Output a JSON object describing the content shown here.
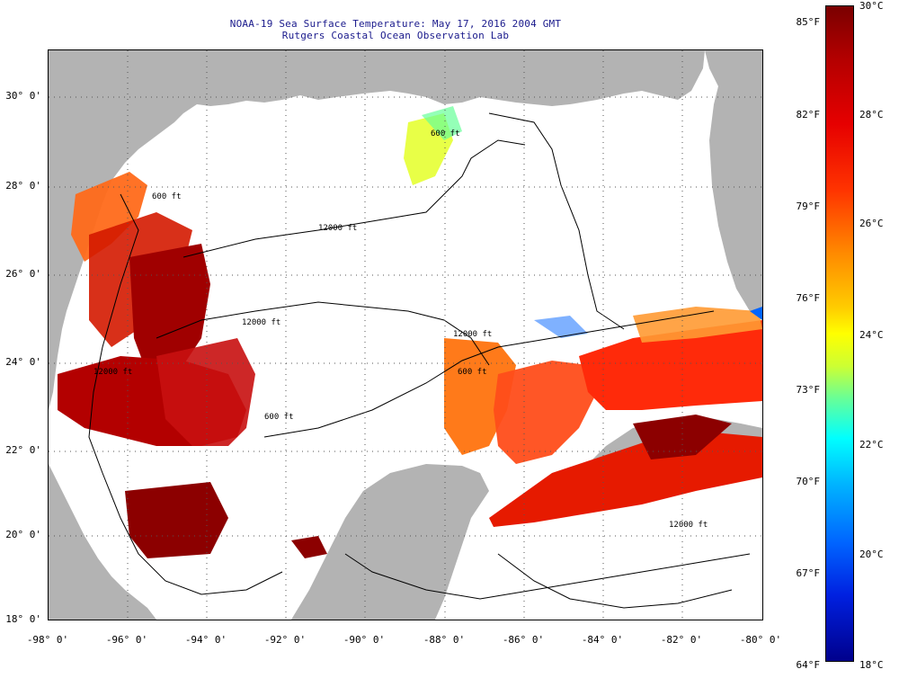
{
  "title": {
    "line1": "NOAA-19 Sea Surface Temperature:  May 17, 2016 2004 GMT",
    "line2": "Rutgers Coastal Ocean Observation Lab"
  },
  "map": {
    "lat_labels": [
      "30° 0'",
      "28° 0'",
      "26° 0'",
      "24° 0'",
      "22° 0'",
      "20° 0'",
      "18° 0'"
    ],
    "lon_labels": [
      "-98° 0'",
      "-96° 0'",
      "-94° 0'",
      "-92° 0'",
      "-90° 0'",
      "-88° 0'",
      "-86° 0'",
      "-84° 0'",
      "-82° 0'",
      "-80° 0'"
    ],
    "depth_labels": [
      "600 ft",
      "600 ft",
      "12000 ft",
      "12000 ft",
      "12000 ft",
      "12000 ft",
      "600 ft",
      "12000 ft",
      "600 ft"
    ],
    "colors": {
      "land": "#b3b3b3",
      "no_data": "#ffffff",
      "contour": "#000000"
    }
  },
  "colorbar": {
    "f_labels": [
      "85°F",
      "82°F",
      "79°F",
      "76°F",
      "73°F",
      "70°F",
      "67°F",
      "64°F"
    ],
    "c_labels": [
      "30°C",
      "28°C",
      "26°C",
      "24°C",
      "22°C",
      "20°C",
      "18°C"
    ]
  }
}
